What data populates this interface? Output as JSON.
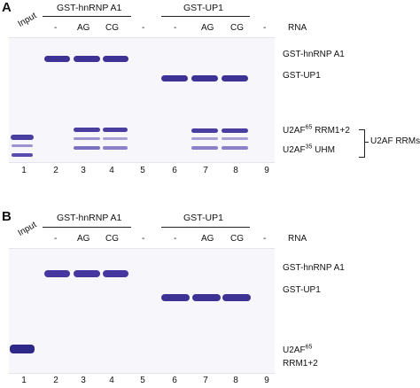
{
  "panels": [
    {
      "letter": "A",
      "input_label": "Input",
      "group1": "GST-hnRNP A1",
      "group2": "GST-UP1",
      "rna_label": "RNA",
      "conditions": [
        "-",
        "AG",
        "CG",
        "-",
        "-",
        "AG",
        "CG",
        "-"
      ],
      "lanes": [
        "1",
        "2",
        "3",
        "4",
        "5",
        "6",
        "7",
        "8",
        "9"
      ],
      "right_labels": {
        "hnrnp": "GST-hnRNP A1",
        "up1": "GST-UP1",
        "rrm12_base": "U2AF",
        "rrm12_sup": "65",
        "rrm12_suffix": " RRM1+2",
        "uhm_base": "U2AF",
        "uhm_sup": "35",
        "uhm_suffix": " UHM",
        "bracket": "U2AF RRMs"
      }
    },
    {
      "letter": "B",
      "input_label": "Input",
      "group1": "GST-hnRNP A1",
      "group2": "GST-UP1",
      "rna_label": "RNA",
      "conditions": [
        "-",
        "AG",
        "CG",
        "-",
        "-",
        "AG",
        "CG",
        "-"
      ],
      "lanes": [
        "1",
        "2",
        "3",
        "4",
        "5",
        "6",
        "7",
        "8",
        "9"
      ],
      "right_labels": {
        "hnrnp": "GST-hnRNP A1",
        "up1": "GST-UP1",
        "rrm_base": "U2AF",
        "rrm_sup": "65",
        "rrm_line2": "RRM1+2"
      }
    }
  ],
  "colors": {
    "band_dark": "#3b2f8f",
    "band_mid": "#5a4db0",
    "band_light": "#8d84c9"
  }
}
